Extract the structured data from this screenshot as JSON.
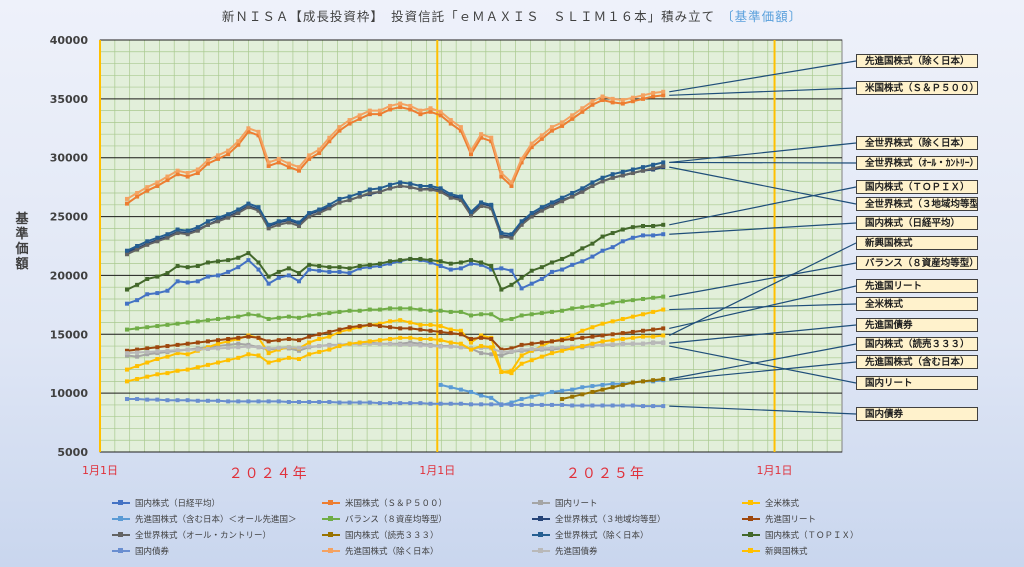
{
  "title": "新ＮＩＳＡ【成長投資枠】　投資信託「ｅＭＡＸＩＳ　ＳＬＩＭ１６本」積み立て",
  "subtitle": "〔基準価額〕",
  "chart_data": {
    "type": "line",
    "title": "新ＮＩＳＡ【成長投資枠】　投資信託「ｅＭＡＸＩＳ　ＳＬＩＭ１６本」積み立て　〔基準価額〕",
    "ylabel": "基準価額",
    "xlabel": "",
    "ylim": [
      5000,
      40000
    ],
    "yticks": [
      5000,
      10000,
      15000,
      20000,
      25000,
      30000,
      35000,
      40000
    ],
    "xticks": [
      {
        "pos": 0,
        "label": "1月1日"
      },
      {
        "pos": 100,
        "label": "1月1日"
      },
      {
        "pos": 200,
        "label": "1月1日"
      }
    ],
    "year_labels": [
      {
        "pos": 50,
        "label": "２０２４年"
      },
      {
        "pos": 150,
        "label": "２０２５年"
      }
    ],
    "x_unit": "週（2024年1月1日起点）",
    "grid": true,
    "x": [
      8,
      11,
      14,
      17,
      20,
      23,
      26,
      29,
      32,
      35,
      38,
      41,
      44,
      47,
      50,
      53,
      56,
      59,
      62,
      65,
      68,
      71,
      74,
      77,
      80,
      83,
      86,
      89,
      92,
      95,
      98,
      101,
      104,
      107,
      110,
      113,
      116,
      119,
      122,
      125,
      128,
      131,
      134,
      137,
      140,
      143,
      146,
      149,
      152,
      155,
      158,
      161,
      164,
      167
    ],
    "series": [
      {
        "name": "国内株式（日経平均）",
        "color": "#4472c4",
        "callout": "国内株式（日経平均）",
        "values": [
          17600,
          17900,
          18400,
          18500,
          18700,
          19500,
          19400,
          19500,
          19900,
          20000,
          20300,
          20700,
          21300,
          20500,
          19300,
          19800,
          20000,
          19500,
          20500,
          20400,
          20300,
          20300,
          20200,
          20600,
          20700,
          20800,
          21000,
          21200,
          21400,
          21300,
          21100,
          20800,
          20500,
          20600,
          21000,
          20900,
          20500,
          20600,
          20400,
          18900,
          19300,
          19700,
          20300,
          20500,
          20900,
          21200,
          21600,
          22100,
          22400,
          22900,
          23200,
          23400,
          23400,
          23500
        ]
      },
      {
        "name": "米国株式（Ｓ＆Ｐ５００）",
        "color": "#ed7d31",
        "callout": "米国株式（Ｓ＆Ｐ５００）",
        "values": [
          26100,
          26700,
          27200,
          27600,
          28100,
          28600,
          28400,
          28700,
          29500,
          29900,
          30300,
          31100,
          32200,
          31900,
          29300,
          29600,
          29200,
          28900,
          29900,
          30400,
          31400,
          32300,
          32900,
          33300,
          33700,
          33700,
          34100,
          34300,
          34100,
          33700,
          33900,
          33600,
          32900,
          32300,
          30300,
          31700,
          31400,
          28400,
          27600,
          29600,
          30900,
          31600,
          32300,
          32700,
          33300,
          33900,
          34500,
          34900,
          34700,
          34600,
          34800,
          35000,
          35200,
          35300
        ]
      },
      {
        "name": "国内リート",
        "color": "#a5a5a5",
        "values": [
          13200,
          13100,
          13300,
          13400,
          13500,
          13600,
          13700,
          13800,
          13900,
          14000,
          14100,
          14200,
          14100,
          13900,
          13700,
          13800,
          13800,
          13600,
          13900,
          14000,
          14100,
          14100,
          14200,
          14200,
          14300,
          14200,
          14200,
          14200,
          14300,
          14200,
          14100,
          14000,
          14000,
          13900,
          13800,
          13400,
          13300,
          13200,
          13500,
          13600,
          13600,
          13700,
          13700,
          13800,
          13900,
          13900,
          14000,
          14100,
          14100,
          14200,
          14200,
          14200,
          14300,
          14300
        ]
      },
      {
        "name": "全米株式",
        "color": "#ffc000",
        "callout": "全米株式",
        "values": [
          12000,
          12300,
          12600,
          12900,
          13100,
          13400,
          13300,
          13600,
          13900,
          14200,
          14400,
          14600,
          14900,
          14700,
          13400,
          13700,
          13900,
          13800,
          14300,
          14600,
          14800,
          15200,
          15400,
          15600,
          15800,
          15900,
          16100,
          16200,
          16000,
          15800,
          15800,
          15700,
          15400,
          15300,
          14300,
          14900,
          14700,
          11800,
          11900,
          13200,
          13600,
          14000,
          14400,
          14600,
          14900,
          15300,
          15600,
          15900,
          16100,
          16300,
          16500,
          16700,
          16900,
          17100
        ]
      },
      {
        "name": "先進国株式（含む日本）＜オール先進国＞",
        "color": "#5b9bd5",
        "callout": "先進国株式（含む日本）",
        "values": [
          null,
          null,
          null,
          null,
          null,
          null,
          null,
          null,
          null,
          null,
          null,
          null,
          null,
          null,
          null,
          null,
          null,
          null,
          null,
          null,
          null,
          null,
          null,
          null,
          null,
          null,
          null,
          null,
          null,
          null,
          null,
          10700,
          10500,
          10300,
          10100,
          9800,
          9600,
          9000,
          9200,
          9500,
          9700,
          9900,
          10100,
          10200,
          10300,
          10500,
          10600,
          10700,
          10800,
          10800,
          10900,
          11000,
          11000,
          11100
        ]
      },
      {
        "name": "バランス（８資産均等型）",
        "color": "#70ad47",
        "callout": "バランス（８資産均等型）",
        "values": [
          15400,
          15500,
          15600,
          15700,
          15800,
          15900,
          16000,
          16100,
          16200,
          16300,
          16400,
          16500,
          16700,
          16600,
          16300,
          16400,
          16500,
          16400,
          16600,
          16700,
          16800,
          16900,
          17000,
          17000,
          17100,
          17100,
          17200,
          17200,
          17200,
          17100,
          17000,
          17000,
          16900,
          16900,
          16600,
          16700,
          16700,
          16200,
          16300,
          16600,
          16700,
          16800,
          16900,
          17000,
          17200,
          17300,
          17400,
          17500,
          17700,
          17800,
          17900,
          18000,
          18100,
          18200
        ]
      },
      {
        "name": "全世界株式（３地域均等型）",
        "color": "#264478",
        "callout": "全世界株式（３地域均等型）",
        "values": [
          22000,
          22300,
          22700,
          23000,
          23300,
          23700,
          23600,
          23900,
          24300,
          24700,
          25000,
          25400,
          25900,
          25600,
          24200,
          24500,
          24700,
          24400,
          25200,
          25500,
          25800,
          26200,
          26400,
          26700,
          26900,
          27100,
          27400,
          27600,
          27500,
          27300,
          27400,
          27200,
          26700,
          26600,
          25300,
          26100,
          25900,
          23400,
          23300,
          24400,
          25100,
          25600,
          26000,
          26400,
          26700,
          27200,
          27600,
          28000,
          28300,
          28500,
          28700,
          28900,
          29000,
          29200
        ]
      },
      {
        "name": "先進国リート",
        "color": "#9e480e",
        "callout": "先進国リート",
        "values": [
          13600,
          13700,
          13800,
          13900,
          14000,
          14100,
          14200,
          14300,
          14400,
          14500,
          14600,
          14700,
          14800,
          14700,
          14400,
          14500,
          14600,
          14500,
          14800,
          15000,
          15200,
          15400,
          15600,
          15700,
          15800,
          15700,
          15600,
          15500,
          15500,
          15400,
          15300,
          15200,
          15100,
          15000,
          14600,
          14700,
          14600,
          13700,
          13800,
          14100,
          14200,
          14300,
          14400,
          14500,
          14600,
          14700,
          14800,
          14900,
          15000,
          15100,
          15200,
          15300,
          15400,
          15500
        ]
      },
      {
        "name": "全世界株式（オール・カントリー）",
        "color": "#636363",
        "callout": "全世界株式（オール・カントリー）",
        "values": [
          21800,
          22200,
          22600,
          22900,
          23200,
          23600,
          23500,
          23800,
          24300,
          24600,
          24900,
          25300,
          25800,
          25500,
          24000,
          24300,
          24500,
          24200,
          25000,
          25300,
          25700,
          26200,
          26400,
          26700,
          27000,
          27100,
          27400,
          27600,
          27500,
          27300,
          27300,
          27100,
          26600,
          26400,
          25100,
          25900,
          25700,
          23300,
          23200,
          24300,
          25000,
          25500,
          25900,
          26300,
          26700,
          27100,
          27600,
          28000,
          28300,
          28500,
          28700,
          28900,
          29100,
          29300
        ]
      },
      {
        "name": "国内株式（読売３３３）",
        "color": "#997300",
        "callout": "国内株式（読売３３３）",
        "values": [
          null,
          null,
          null,
          null,
          null,
          null,
          null,
          null,
          null,
          null,
          null,
          null,
          null,
          null,
          null,
          null,
          null,
          null,
          null,
          null,
          null,
          null,
          null,
          null,
          null,
          null,
          null,
          null,
          null,
          null,
          null,
          null,
          null,
          null,
          null,
          null,
          null,
          null,
          null,
          null,
          null,
          null,
          null,
          9500,
          9700,
          9900,
          10100,
          10300,
          10500,
          10700,
          10900,
          11000,
          11100,
          11200
        ]
      },
      {
        "name": "全世界株式（除く日本）",
        "color": "#255e91",
        "callout": "全世界株式（除く日本）",
        "values": [
          22100,
          22500,
          22900,
          23200,
          23500,
          23900,
          23800,
          24100,
          24600,
          24900,
          25200,
          25600,
          26100,
          25800,
          24300,
          24600,
          24800,
          24500,
          25300,
          25600,
          26000,
          26500,
          26700,
          27000,
          27300,
          27400,
          27700,
          27900,
          27800,
          27600,
          27600,
          27400,
          26900,
          26700,
          25400,
          26200,
          26000,
          23600,
          23500,
          24600,
          25300,
          25800,
          26200,
          26600,
          27000,
          27400,
          27900,
          28300,
          28600,
          28800,
          29000,
          29200,
          29400,
          29600
        ]
      },
      {
        "name": "国内株式（ＴＯＰＩＸ）",
        "color": "#43682b",
        "callout": "国内株式（ＴＯＰＩＸ）",
        "values": [
          18800,
          19200,
          19700,
          19900,
          20200,
          20800,
          20700,
          20800,
          21100,
          21200,
          21300,
          21500,
          21900,
          21100,
          19900,
          20300,
          20600,
          20200,
          20900,
          20800,
          20700,
          20700,
          20600,
          20800,
          20900,
          21000,
          21200,
          21300,
          21400,
          21400,
          21300,
          21200,
          21000,
          21100,
          21300,
          21100,
          20800,
          18800,
          19200,
          19800,
          20400,
          20700,
          21100,
          21400,
          21800,
          22300,
          22700,
          23300,
          23600,
          23900,
          24100,
          24200,
          24200,
          24300
        ]
      },
      {
        "name": "国内債券",
        "color": "#698ed0",
        "callout": "国内債券",
        "values": [
          9500,
          9500,
          9450,
          9450,
          9400,
          9400,
          9400,
          9350,
          9350,
          9350,
          9300,
          9300,
          9300,
          9300,
          9300,
          9300,
          9250,
          9250,
          9250,
          9250,
          9250,
          9200,
          9200,
          9200,
          9200,
          9150,
          9150,
          9150,
          9150,
          9150,
          9100,
          9100,
          9100,
          9100,
          9050,
          9050,
          9050,
          9050,
          9000,
          9000,
          9000,
          9000,
          9000,
          9000,
          8950,
          8950,
          8950,
          8950,
          8950,
          8950,
          8950,
          8900,
          8900,
          8900
        ]
      },
      {
        "name": "先進国株式（除く日本）",
        "color": "#f4a261",
        "callout": "先進国株式（除く日本）",
        "values": [
          26500,
          27000,
          27500,
          27900,
          28400,
          28900,
          28700,
          29000,
          29800,
          30200,
          30600,
          31400,
          32500,
          32200,
          29600,
          29900,
          29500,
          29200,
          30200,
          30700,
          31700,
          32600,
          33200,
          33600,
          34000,
          34000,
          34400,
          34600,
          34400,
          34000,
          34200,
          33900,
          33200,
          32600,
          30600,
          32000,
          31700,
          28700,
          27900,
          29900,
          31200,
          31900,
          32600,
          33000,
          33600,
          34200,
          34800,
          35200,
          35000,
          34900,
          35100,
          35300,
          35500,
          35600
        ]
      },
      {
        "name": "先進国債券",
        "color": "#b9b9b9",
        "callout": "先進国債券",
        "values": [
          13400,
          13450,
          13500,
          13550,
          13600,
          13650,
          13700,
          13700,
          13750,
          13800,
          13850,
          13900,
          13950,
          13900,
          13800,
          13850,
          13900,
          13850,
          13950,
          14000,
          14050,
          14100,
          14150,
          14150,
          14200,
          14150,
          14150,
          14100,
          14100,
          14050,
          14000,
          13950,
          13950,
          13900,
          13800,
          13850,
          13800,
          13500,
          13550,
          13700,
          13750,
          13800,
          13850,
          13900,
          13950,
          14000,
          14050,
          14100,
          14150,
          14150,
          14200,
          14200,
          14250,
          14250
        ]
      },
      {
        "name": "新興国株式",
        "color": "#ffc000",
        "callout": "新興国株式",
        "values": [
          11000,
          11200,
          11400,
          11600,
          11700,
          11900,
          12000,
          12200,
          12400,
          12600,
          12800,
          13000,
          13300,
          13200,
          12600,
          12800,
          13000,
          12900,
          13300,
          13500,
          13700,
          14000,
          14200,
          14300,
          14400,
          14500,
          14600,
          14700,
          14700,
          14600,
          14600,
          14500,
          14300,
          14200,
          13700,
          14000,
          13900,
          11800,
          11700,
          12500,
          12800,
          13100,
          13400,
          13600,
          13800,
          14000,
          14200,
          14400,
          14500,
          14600,
          14700,
          14800,
          14800,
          14900
        ]
      }
    ],
    "callouts": [
      "先進国株式（除く日本）",
      "米国株式（Ｓ＆Ｐ５００）",
      "全世界株式（除く日本）",
      "全世界株式（ｵｰﾙ・ｶﾝﾄﾘｰ）",
      "国内株式（ＴＯＰＩＸ）",
      "全世界株式（３地域均等型）",
      "国内株式（日経平均）",
      "新興国株式",
      "バランス（８資産均等型）",
      "先進国リート",
      "全米株式",
      "先進国債券",
      "国内株式（読売３３３）",
      "先進国株式（含む日本）",
      "国内リート",
      "国内債券"
    ]
  }
}
